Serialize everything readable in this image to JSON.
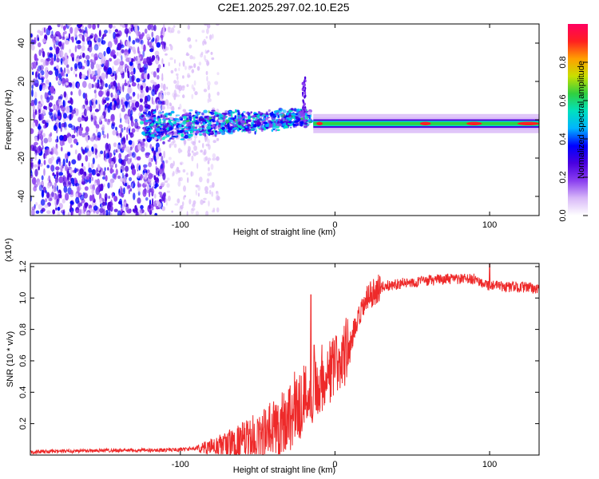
{
  "title": "C2E1.2025.297.02.10.E25",
  "chart_data": [
    {
      "type": "heatmap",
      "name": "spectrogram",
      "xlabel": "Height of straight line (km)",
      "ylabel": "Frequency (Hz)",
      "xlim": [
        -197,
        132
      ],
      "ylim": [
        -50,
        50
      ],
      "xticks": [
        -100,
        0,
        100
      ],
      "xtick_labels": [
        "-100",
        "0",
        "100"
      ],
      "yticks": [
        -40,
        -20,
        0,
        20,
        40
      ],
      "ytick_labels": [
        "-40",
        "-20",
        "0",
        "20",
        "40"
      ],
      "colorbar": {
        "label": "Normalized spectral amplitude",
        "range": [
          0,
          1
        ],
        "ticks": [
          0.0,
          0.2,
          0.4,
          0.6,
          0.8
        ],
        "tick_labels": [
          "0.0",
          "0.2",
          "0.4",
          "0.6",
          "0.8"
        ],
        "colormap": [
          "#ffffff",
          "#d8b8f8",
          "#8a3ef0",
          "#4a00e0",
          "#0000ff",
          "#00b4ff",
          "#00e0c0",
          "#30d040",
          "#c8e000",
          "#ffa000",
          "#ff2020",
          "#ff0060"
        ]
      },
      "regions": [
        {
          "feature": "broadband noise",
          "x_range": [
            -197,
            -110
          ],
          "freq_range": [
            -50,
            50
          ],
          "amplitude": 0.25
        },
        {
          "feature": "sparse noise",
          "x_range": [
            -110,
            -75
          ],
          "freq_range": [
            -50,
            50
          ],
          "amplitude": 0.08
        },
        {
          "feature": "turbulent band",
          "x_range": [
            -125,
            -15
          ],
          "freq_range": [
            -12,
            5
          ],
          "amplitude": 0.3
        },
        {
          "feature": "spike",
          "x_range": [
            -21,
            -19
          ],
          "freq_range": [
            0,
            22
          ],
          "amplitude": 0.3
        },
        {
          "feature": "narrow line",
          "x_range": [
            -14,
            132
          ],
          "freq_range": [
            -3.5,
            0.5
          ],
          "amplitude": 0.9
        }
      ]
    },
    {
      "type": "line",
      "name": "snr",
      "xlabel": "Height of straight line (km)",
      "ylabel": "SNR (10 * v/v)",
      "yscale_label": "(x10⁴)",
      "xlim": [
        -197,
        132
      ],
      "ylim": [
        0,
        1.22
      ],
      "xticks": [
        -100,
        0,
        100
      ],
      "xtick_labels": [
        "-100",
        "0",
        "100"
      ],
      "yticks": [
        0.2,
        0.4,
        0.6,
        0.8,
        1.0,
        1.2
      ],
      "ytick_labels": [
        "0.2",
        "0.4",
        "0.6",
        "0.8",
        "1.0",
        "1.2"
      ],
      "color": "#ee2a2a",
      "x": [
        -197,
        -150,
        -120,
        -100,
        -80,
        -60,
        -45,
        -35,
        -25,
        -20,
        -16,
        -12,
        -10,
        -5,
        0,
        5,
        10,
        15,
        20,
        25,
        30,
        40,
        50,
        60,
        70,
        80,
        90,
        95,
        100,
        110,
        120,
        132
      ],
      "y": [
        0.02,
        0.03,
        0.03,
        0.035,
        0.05,
        0.08,
        0.13,
        0.2,
        0.3,
        0.36,
        0.4,
        0.45,
        0.48,
        0.52,
        0.56,
        0.62,
        0.72,
        0.85,
        0.98,
        1.04,
        1.07,
        1.09,
        1.1,
        1.11,
        1.12,
        1.12,
        1.12,
        1.1,
        1.08,
        1.07,
        1.07,
        1.06
      ],
      "peaks": [
        {
          "x": -15.5,
          "y": 1.02
        },
        {
          "x": -13.5,
          "y": 0.7
        },
        {
          "x": 100,
          "y": 1.22
        }
      ]
    }
  ]
}
